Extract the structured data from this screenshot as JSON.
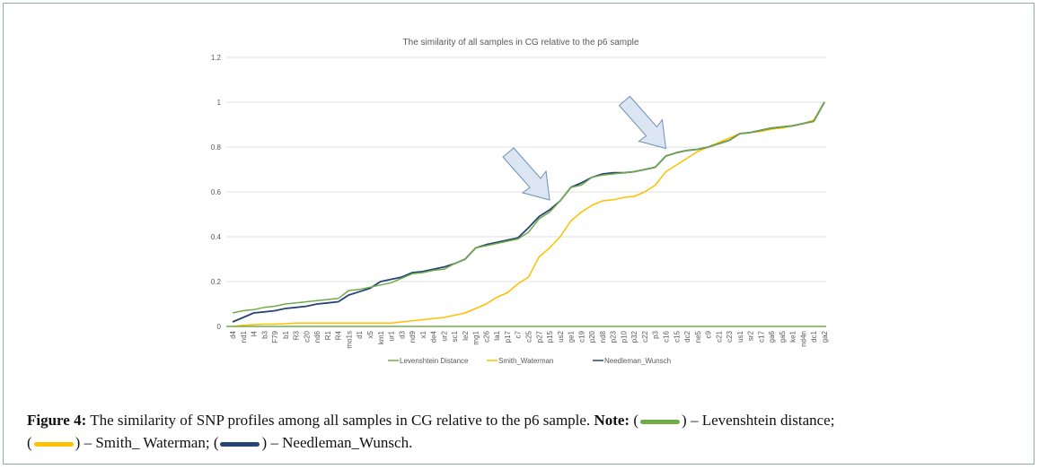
{
  "chart_data": {
    "type": "line",
    "title": "The similarity of all samples in CG relative to the p6 sample",
    "xlabel": "",
    "ylabel": "",
    "ylim": [
      0,
      1.2
    ],
    "yticks": [
      "0",
      "0.2",
      "0.4",
      "0.6",
      "0.8",
      "1",
      "1.2"
    ],
    "grid": true,
    "legend_position": "bottom",
    "categories": [
      "d4",
      "nd1",
      "l4",
      "b3",
      "F79",
      "b1",
      "R3",
      "c20",
      "nd6",
      "R1",
      "R4",
      "mo1s",
      "d1",
      "x5",
      "km1",
      "ur1",
      "d3",
      "nd9",
      "x1",
      "de4",
      "ur2",
      "sc1",
      "le2",
      "mg1",
      "c26",
      "la1",
      "p17",
      "c7",
      "c25",
      "p27",
      "p15",
      "us2",
      "ge1",
      "c19",
      "p20",
      "nd8",
      "p23",
      "p10",
      "p32",
      "c22",
      "p3",
      "c16",
      "c15",
      "dc2",
      "ne5",
      "c9",
      "c21",
      "c23",
      "us1",
      "sr2",
      "c17",
      "ga6",
      "ga5",
      "ke1",
      "nd4n",
      "dc1",
      "ga2"
    ],
    "series": [
      {
        "name": "Levenshtein Distance",
        "color": "#70ad47",
        "values": [
          0.06,
          0.07,
          0.075,
          0.085,
          0.09,
          0.1,
          0.105,
          0.11,
          0.115,
          0.12,
          0.125,
          0.16,
          0.165,
          0.175,
          0.185,
          0.195,
          0.215,
          0.235,
          0.24,
          0.25,
          0.255,
          0.28,
          0.3,
          0.35,
          0.36,
          0.37,
          0.38,
          0.39,
          0.42,
          0.48,
          0.51,
          0.56,
          0.62,
          0.63,
          0.665,
          0.675,
          0.68,
          0.685,
          0.69,
          0.7,
          0.71,
          0.76,
          0.775,
          0.785,
          0.79,
          0.8,
          0.815,
          0.83,
          0.86,
          0.865,
          0.875,
          0.885,
          0.89,
          0.895,
          0.905,
          0.915,
          1.0
        ]
      },
      {
        "name": "Smith_Waterman",
        "color": "#ffc000",
        "values": [
          0.0,
          0.005,
          0.008,
          0.01,
          0.01,
          0.012,
          0.015,
          0.015,
          0.015,
          0.015,
          0.015,
          0.015,
          0.015,
          0.015,
          0.015,
          0.015,
          0.02,
          0.025,
          0.03,
          0.035,
          0.04,
          0.05,
          0.06,
          0.08,
          0.1,
          0.13,
          0.15,
          0.19,
          0.22,
          0.31,
          0.35,
          0.4,
          0.47,
          0.51,
          0.54,
          0.56,
          0.565,
          0.575,
          0.58,
          0.6,
          0.63,
          0.69,
          0.72,
          0.75,
          0.78,
          0.8,
          0.82,
          0.84,
          0.86,
          0.865,
          0.87,
          0.88,
          0.885,
          0.895,
          0.905,
          0.92,
          1.0
        ]
      },
      {
        "name": "Needleman_Wunsch",
        "color": "#264478",
        "values": [
          0.02,
          0.04,
          0.06,
          0.065,
          0.07,
          0.08,
          0.085,
          0.09,
          0.1,
          0.105,
          0.11,
          0.14,
          0.155,
          0.17,
          0.2,
          0.21,
          0.22,
          0.24,
          0.245,
          0.255,
          0.265,
          0.28,
          0.3,
          0.35,
          0.365,
          0.375,
          0.385,
          0.395,
          0.44,
          0.49,
          0.52,
          0.56,
          0.62,
          0.64,
          0.665,
          0.68,
          0.685,
          0.685,
          0.69,
          0.7,
          0.71,
          0.76,
          0.775,
          0.785,
          0.79,
          0.8,
          0.815,
          0.83,
          0.86,
          0.865,
          0.875,
          0.885,
          0.89,
          0.895,
          0.905,
          0.915,
          1.0
        ]
      }
    ],
    "annotations": [
      "arrow pointing at p15",
      "arrow pointing at c16"
    ]
  },
  "caption": {
    "label": "Figure 4:",
    "text": "The similarity of SNP profiles among all samples in CG relative to the p6 sample.",
    "note_label": "Note:",
    "lev": "– Levenshtein distance;",
    "sw": "– Smith_ Waterman;",
    "nw": "– Needleman_Wunsch."
  }
}
